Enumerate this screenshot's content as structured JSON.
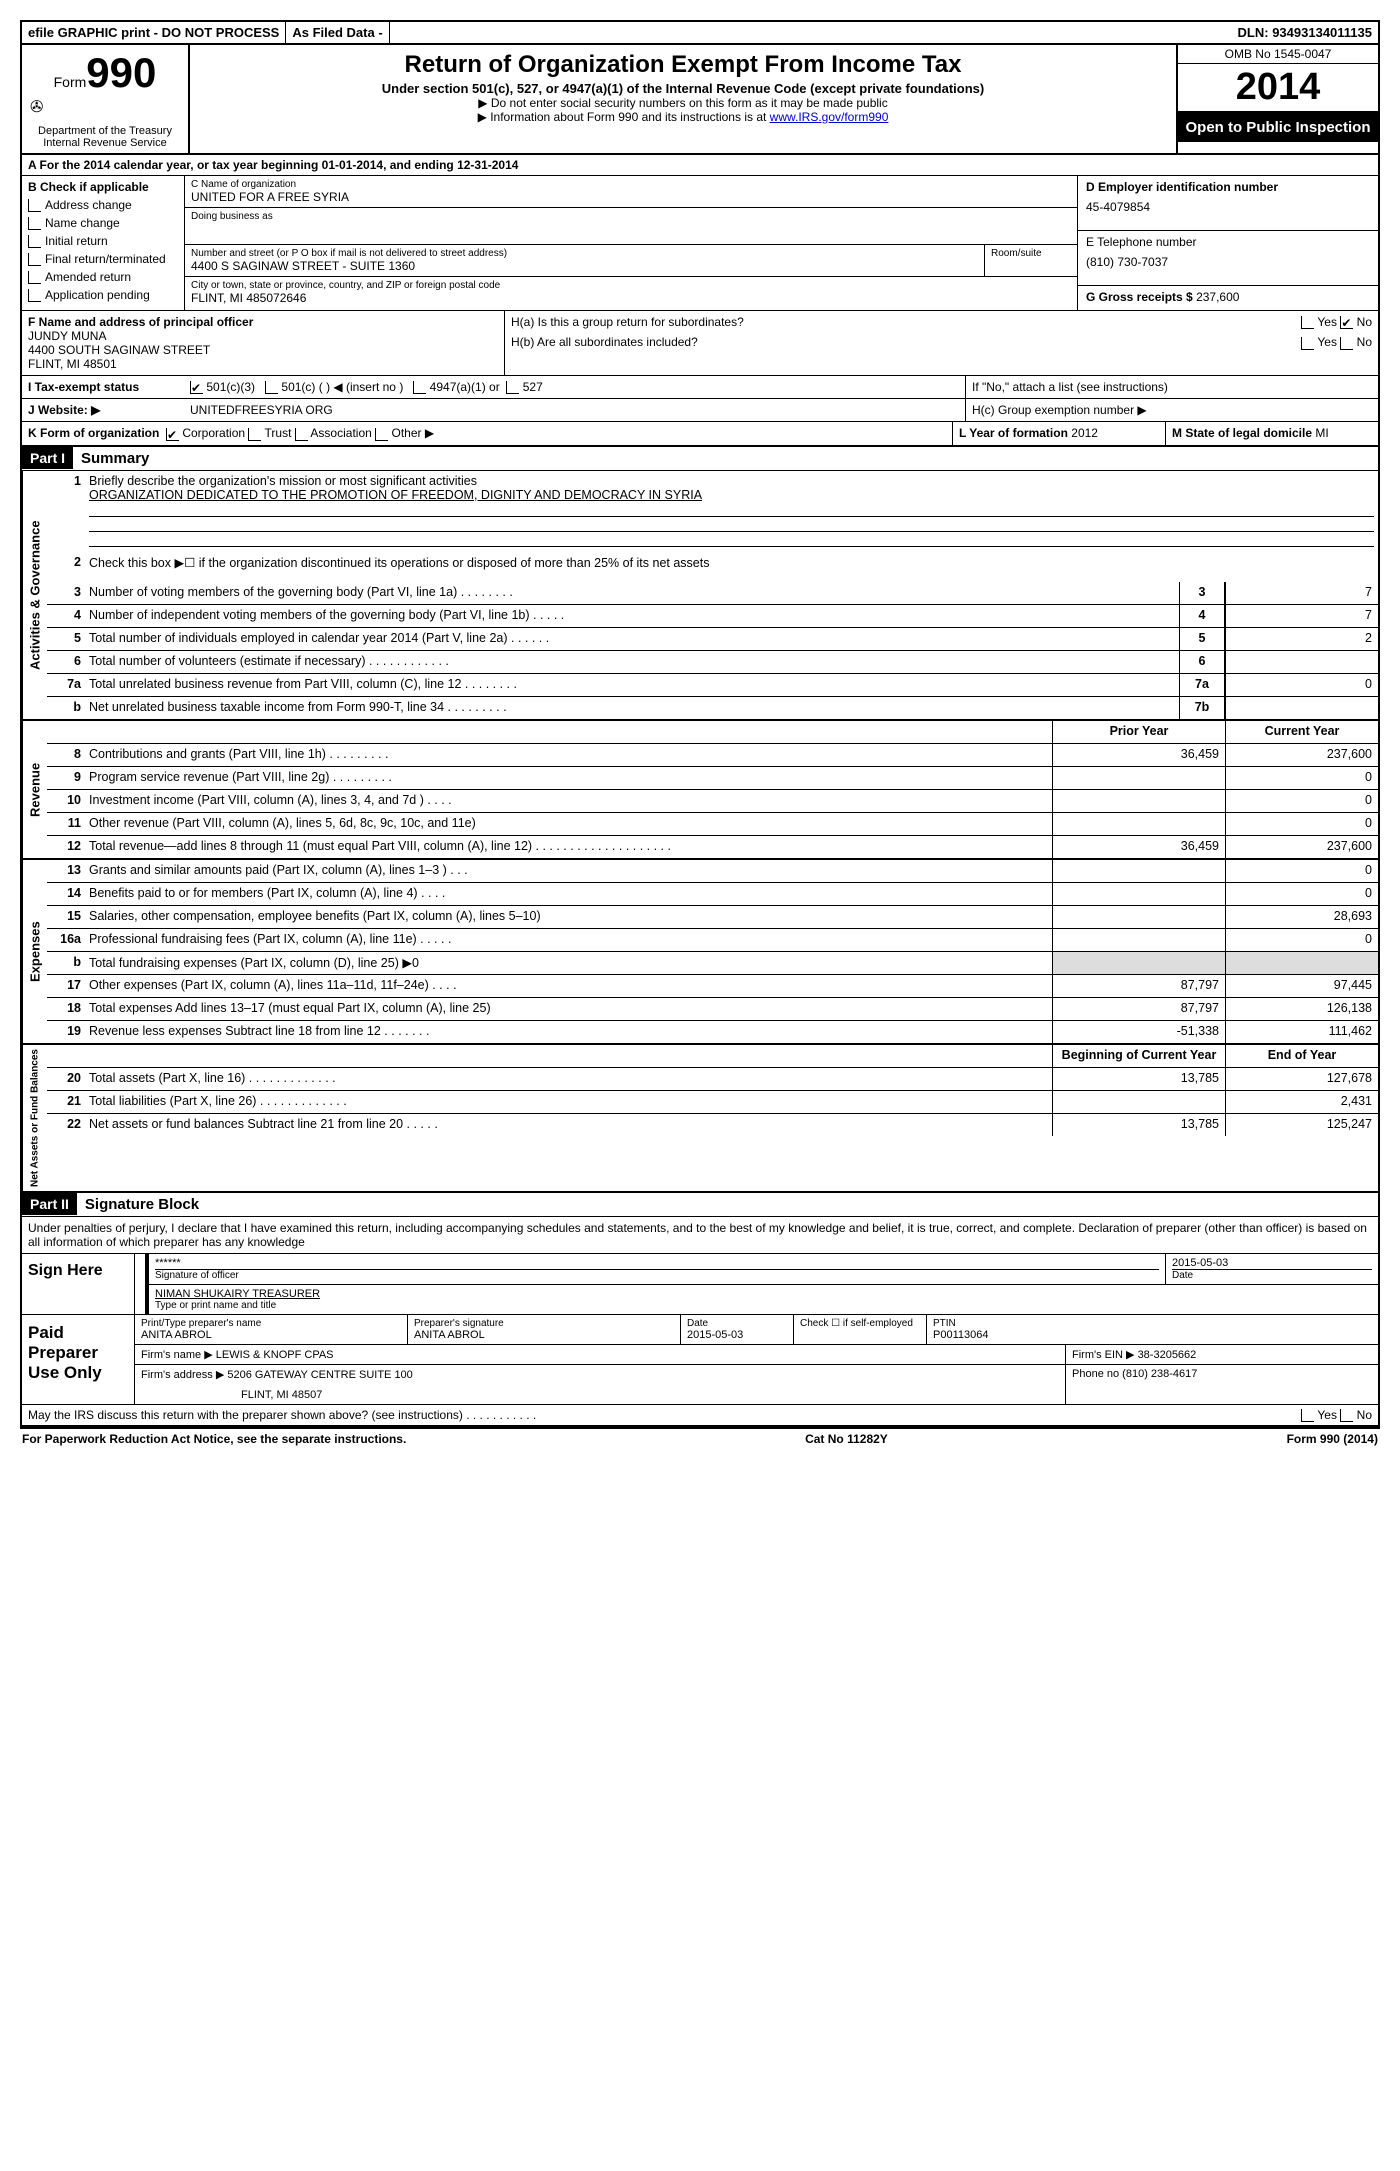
{
  "topbar": {
    "efile": "efile GRAPHIC print - DO NOT PROCESS",
    "asfiled": "As Filed Data -",
    "dln_label": "DLN:",
    "dln": "93493134011135"
  },
  "header": {
    "form_word": "Form",
    "form_num": "990",
    "dept1": "Department of the Treasury",
    "dept2": "Internal Revenue Service",
    "title": "Return of Organization Exempt From Income Tax",
    "subtitle": "Under section 501(c), 527, or 4947(a)(1) of the Internal Revenue Code (except private foundations)",
    "note1": "▶ Do not enter social security numbers on this form as it may be made public",
    "note2_pre": "▶ Information about Form 990 and its instructions is at ",
    "note2_link": "www.IRS.gov/form990",
    "omb": "OMB No 1545-0047",
    "year": "2014",
    "open": "Open to Public Inspection"
  },
  "section_a": {
    "text_pre": "A For the 2014 calendar year, or tax year beginning ",
    "begin": "01-01-2014",
    "mid": ", and ending ",
    "end": "12-31-2014"
  },
  "col_b": {
    "label": "B Check if applicable",
    "items": [
      "Address change",
      "Name change",
      "Initial return",
      "Final return/terminated",
      "Amended return",
      "Application pending"
    ]
  },
  "col_c": {
    "name_label": "C Name of organization",
    "name": "UNITED FOR A FREE SYRIA",
    "dba_label": "Doing business as",
    "addr_label": "Number and street (or P O box if mail is not delivered to street address)",
    "room_label": "Room/suite",
    "addr": "4400 S SAGINAW STREET - SUITE 1360",
    "city_label": "City or town, state or province, country, and ZIP or foreign postal code",
    "city": "FLINT, MI 485072646",
    "f_label": "F Name and address of principal officer",
    "f_name": "JUNDY MUNA",
    "f_addr1": "4400 SOUTH SAGINAW STREET",
    "f_addr2": "FLINT, MI 48501"
  },
  "col_d": {
    "ein_label": "D Employer identification number",
    "ein": "45-4079854",
    "tel_label": "E Telephone number",
    "tel": "(810) 730-7037",
    "gross_label": "G Gross receipts $",
    "gross": "237,600"
  },
  "h_section": {
    "ha": "H(a) Is this a group return for subordinates?",
    "hb": "H(b) Are all subordinates included?",
    "hb_note": "If \"No,\" attach a list (see instructions)",
    "hc": "H(c) Group exemption number ▶",
    "yes": "Yes",
    "no": "No"
  },
  "row_i": {
    "label": "I   Tax-exempt status",
    "opt1": "501(c)(3)",
    "opt2": "501(c) (  ) ◀ (insert no )",
    "opt3": "4947(a)(1) or",
    "opt4": "527"
  },
  "row_j": {
    "label": "J   Website: ▶",
    "val": "UNITEDFREESYRIA ORG"
  },
  "row_k": {
    "label": "K Form of organization",
    "opts": [
      "Corporation",
      "Trust",
      "Association",
      "Other ▶"
    ],
    "l_label": "L Year of formation",
    "l_val": "2012",
    "m_label": "M State of legal domicile",
    "m_val": "MI"
  },
  "part1": {
    "label": "Part I",
    "title": "Summary"
  },
  "governance": {
    "label": "Activities & Governance",
    "line1_num": "1",
    "line1": "Briefly describe the organization's mission or most significant activities",
    "line1_val": "ORGANIZATION DEDICATED TO THE PROMOTION OF FREEDOM, DIGNITY AND DEMOCRACY IN SYRIA",
    "line2_num": "2",
    "line2": "Check this box ▶☐ if the organization discontinued its operations or disposed of more than 25% of its net assets",
    "rows": [
      {
        "n": "3",
        "t": "Number of voting members of the governing body (Part VI, line 1a)  .   .   .   .   .   .   .   .",
        "b": "3",
        "v": "7"
      },
      {
        "n": "4",
        "t": "Number of independent voting members of the governing body (Part VI, line 1b)  .   .   .   .   .",
        "b": "4",
        "v": "7"
      },
      {
        "n": "5",
        "t": "Total number of individuals employed in calendar year 2014 (Part V, line 2a)  .   .   .   .   .   .",
        "b": "5",
        "v": "2"
      },
      {
        "n": "6",
        "t": "Total number of volunteers (estimate if necessary)  .   .   .   .   .   .   .   .   .   .   .   .",
        "b": "6",
        "v": ""
      },
      {
        "n": "7a",
        "t": "Total unrelated business revenue from Part VIII, column (C), line 12  .   .   .   .   .   .   .   .",
        "b": "7a",
        "v": "0"
      },
      {
        "n": "b",
        "t": "Net unrelated business taxable income from Form 990-T, line 34  .   .   .   .   .   .   .   .   .",
        "b": "7b",
        "v": ""
      }
    ]
  },
  "revenue": {
    "label": "Revenue",
    "header_prior": "Prior Year",
    "header_current": "Current Year",
    "rows": [
      {
        "n": "8",
        "t": "Contributions and grants (Part VIII, line 1h)  .   .   .   .   .   .   .   .   .",
        "p": "36,459",
        "c": "237,600"
      },
      {
        "n": "9",
        "t": "Program service revenue (Part VIII, line 2g)  .   .   .   .   .   .   .   .   .",
        "p": "",
        "c": "0"
      },
      {
        "n": "10",
        "t": "Investment income (Part VIII, column (A), lines 3, 4, and 7d )  .   .   .   .",
        "p": "",
        "c": "0"
      },
      {
        "n": "11",
        "t": "Other revenue (Part VIII, column (A), lines 5, 6d, 8c, 9c, 10c, and 11e)",
        "p": "",
        "c": "0"
      },
      {
        "n": "12",
        "t": "Total revenue—add lines 8 through 11 (must equal Part VIII, column (A), line 12) .   .   .   .   .   .   .   .   .   .   .   .   .   .   .   .   .   .   .   .",
        "p": "36,459",
        "c": "237,600"
      }
    ]
  },
  "expenses": {
    "label": "Expenses",
    "rows": [
      {
        "n": "13",
        "t": "Grants and similar amounts paid (Part IX, column (A), lines 1–3 )  .   .   .",
        "p": "",
        "c": "0"
      },
      {
        "n": "14",
        "t": "Benefits paid to or for members (Part IX, column (A), line 4)  .   .   .   .",
        "p": "",
        "c": "0"
      },
      {
        "n": "15",
        "t": "Salaries, other compensation, employee benefits (Part IX, column (A), lines 5–10)",
        "p": "",
        "c": "28,693"
      },
      {
        "n": "16a",
        "t": "Professional fundraising fees (Part IX, column (A), line 11e)  .   .   .   .   .",
        "p": "",
        "c": "0"
      },
      {
        "n": "b",
        "t": "Total fundraising expenses (Part IX, column (D), line 25) ▶0",
        "p": "gray",
        "c": "gray"
      },
      {
        "n": "17",
        "t": "Other expenses (Part IX, column (A), lines 11a–11d, 11f–24e)  .   .   .   .",
        "p": "87,797",
        "c": "97,445"
      },
      {
        "n": "18",
        "t": "Total expenses Add lines 13–17 (must equal Part IX, column (A), line 25)",
        "p": "87,797",
        "c": "126,138"
      },
      {
        "n": "19",
        "t": "Revenue less expenses Subtract line 18 from line 12  .   .   .   .   .   .   .",
        "p": "-51,338",
        "c": "111,462"
      }
    ]
  },
  "netassets": {
    "label": "Net Assets or Fund Balances",
    "header_begin": "Beginning of Current Year",
    "header_end": "End of Year",
    "rows": [
      {
        "n": "20",
        "t": "Total assets (Part X, line 16)  .   .   .   .   .   .   .   .   .   .   .   .   .",
        "p": "13,785",
        "c": "127,678"
      },
      {
        "n": "21",
        "t": "Total liabilities (Part X, line 26)  .   .   .   .   .   .   .   .   .   .   .   .   .",
        "p": "",
        "c": "2,431"
      },
      {
        "n": "22",
        "t": "Net assets or fund balances Subtract line 21 from line 20  .   .   .   .   .",
        "p": "13,785",
        "c": "125,247"
      }
    ]
  },
  "part2": {
    "label": "Part II",
    "title": "Signature Block",
    "perjury": "Under penalties of perjury, I declare that I have examined this return, including accompanying schedules and statements, and to the best of my knowledge and belief, it is true, correct, and complete. Declaration of preparer (other than officer) is based on all information of which preparer has any knowledge"
  },
  "sign": {
    "label": "Sign Here",
    "stars": "******",
    "sig_label": "Signature of officer",
    "date": "2015-05-03",
    "date_label": "Date",
    "name": "NIMAN SHUKAIRY TREASURER",
    "name_label": "Type or print name and title"
  },
  "preparer": {
    "label": "Paid Preparer Use Only",
    "print_label": "Print/Type preparer's name",
    "print_val": "ANITA ABROL",
    "sig_label": "Preparer's signature",
    "sig_val": "ANITA ABROL",
    "date_label": "Date",
    "date_val": "2015-05-03",
    "check_label": "Check ☐ if self-employed",
    "ptin_label": "PTIN",
    "ptin_val": "P00113064",
    "firm_label": "Firm's name    ▶",
    "firm_val": "LEWIS & KNOPF CPAS",
    "ein_label": "Firm's EIN ▶",
    "ein_val": "38-3205662",
    "addr_label": "Firm's address ▶",
    "addr_val": "5206 GATEWAY CENTRE SUITE 100",
    "addr_val2": "FLINT, MI 48507",
    "phone_label": "Phone no",
    "phone_val": "(810) 238-4617"
  },
  "discuss": {
    "text": "May the IRS discuss this return with the preparer shown above? (see instructions)  .   .   .   .   .   .   .   .   .   .   .",
    "yes": "Yes",
    "no": "No"
  },
  "footer": {
    "left": "For Paperwork Reduction Act Notice, see the separate instructions.",
    "mid": "Cat No 11282Y",
    "right": "Form 990 (2014)"
  }
}
